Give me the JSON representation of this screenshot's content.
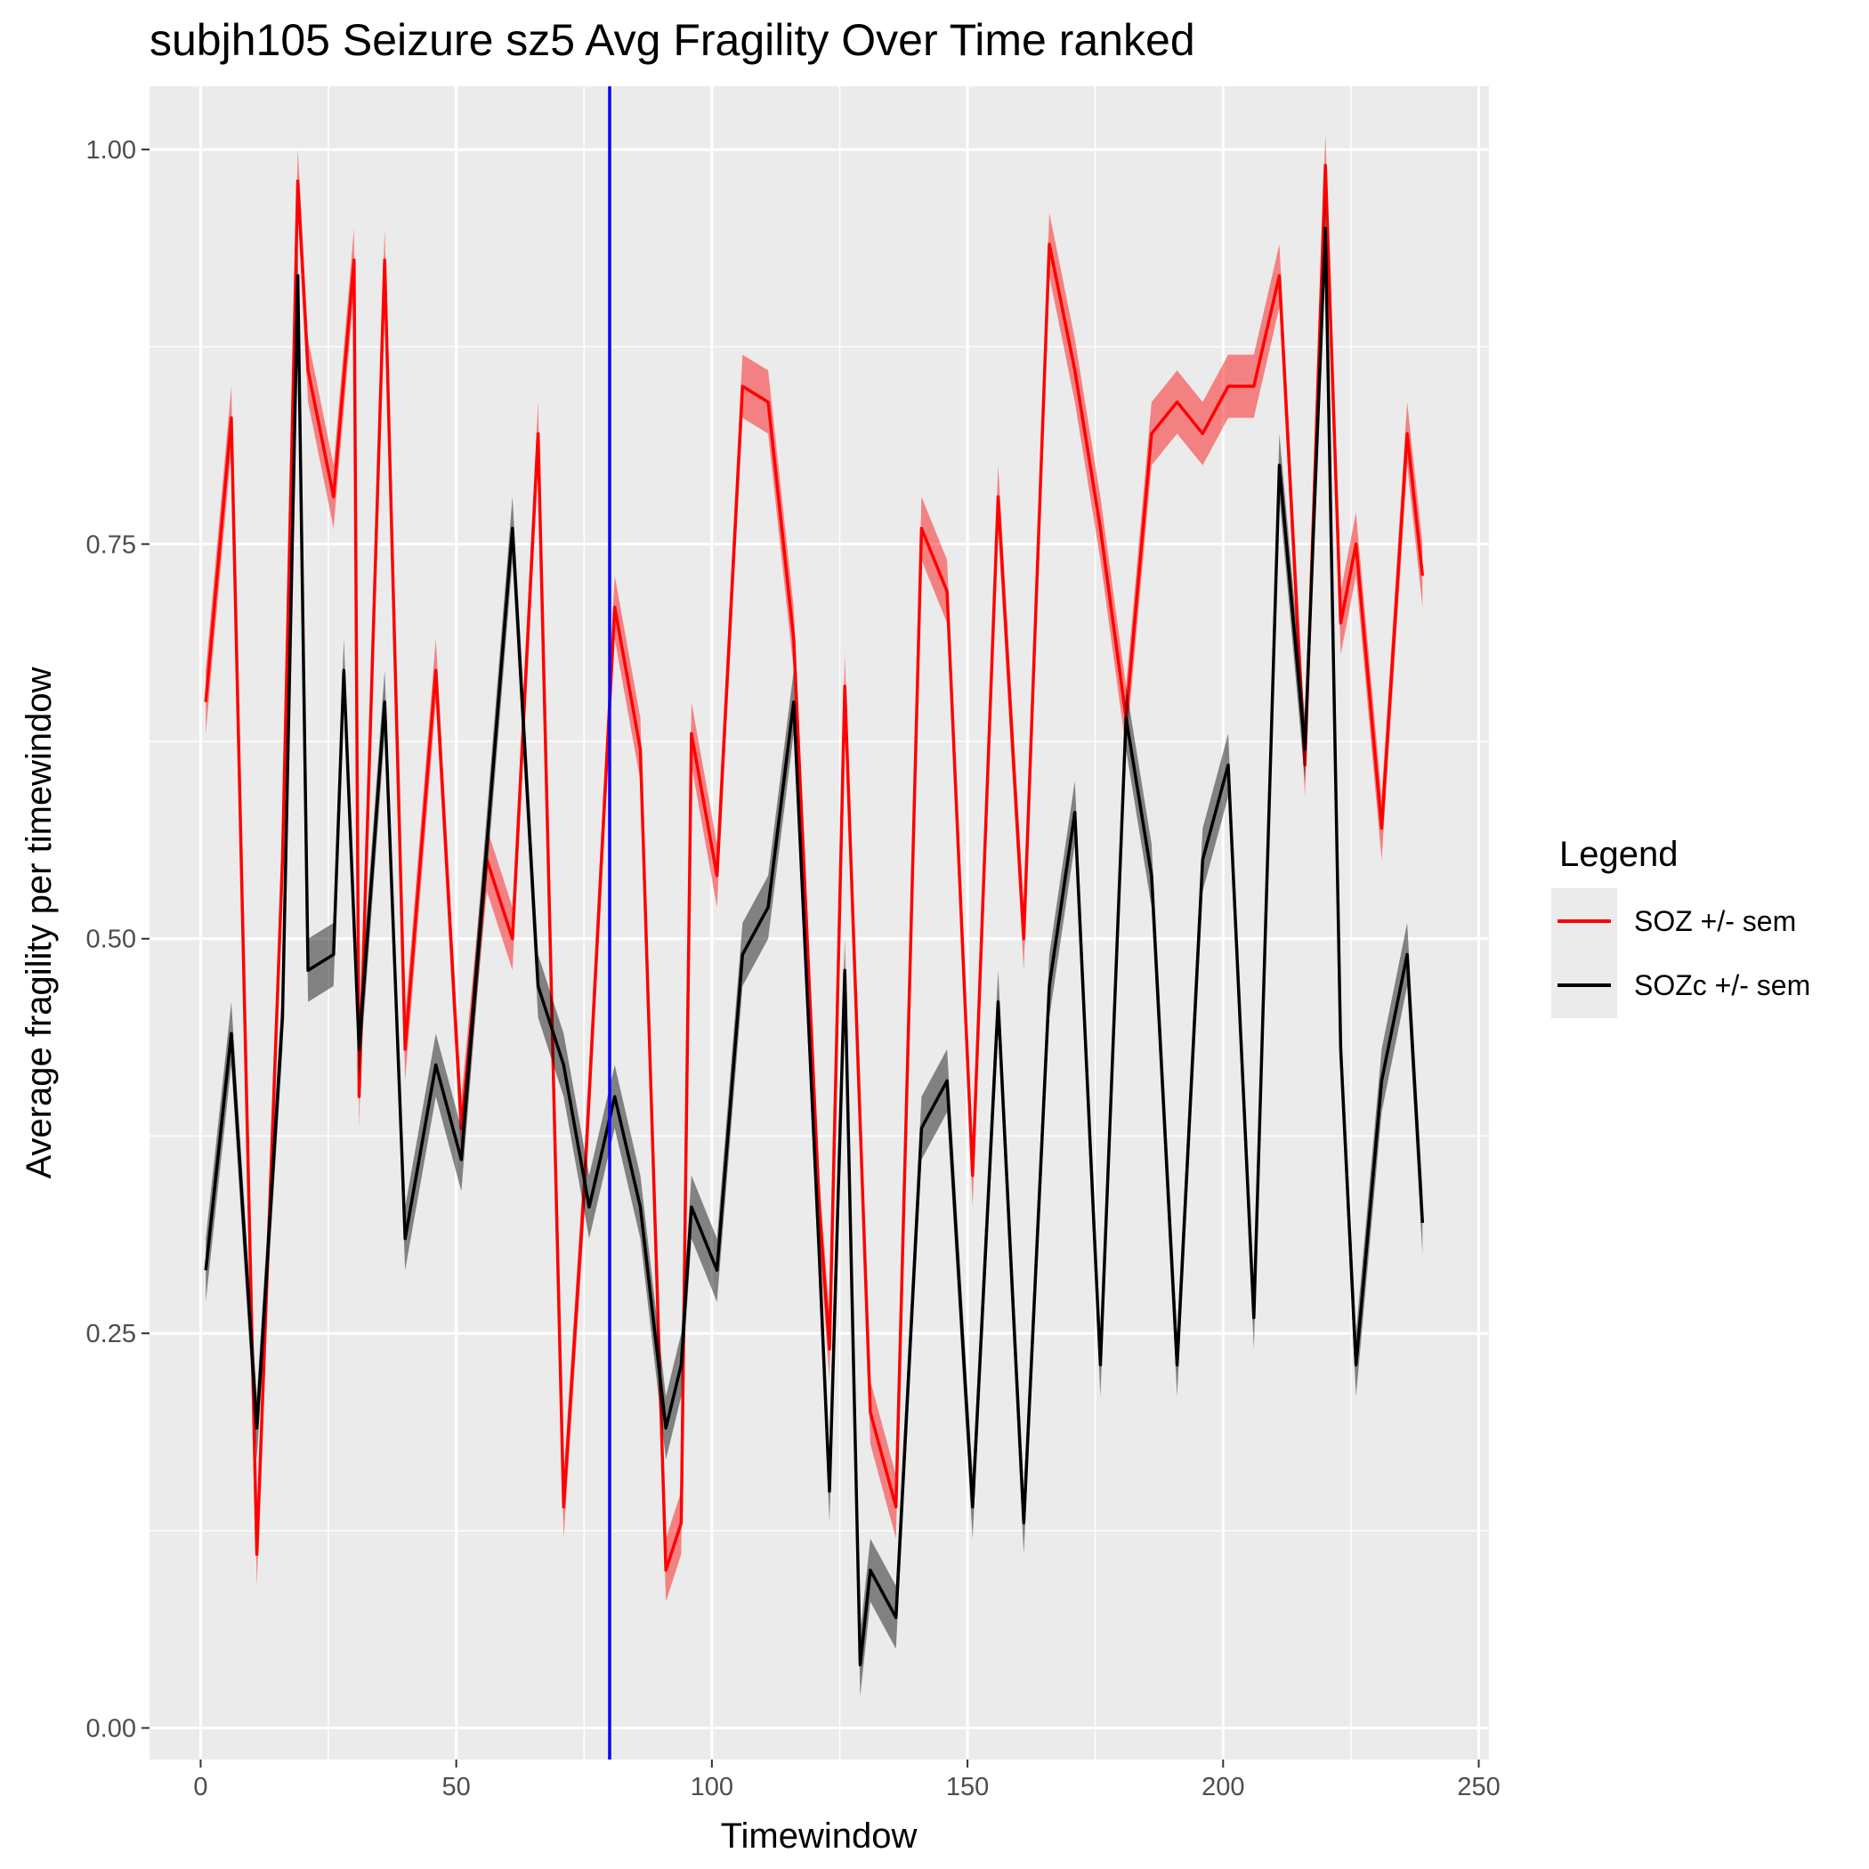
{
  "chart_data": {
    "type": "line",
    "title": "subjh105 Seizure sz5 Avg Fragility Over Time ranked",
    "xlabel": "Timewindow",
    "ylabel": "Average fragility per timewindow",
    "xlim": [
      -10,
      252
    ],
    "ylim": [
      -0.02,
      1.04
    ],
    "x_ticks": [
      0,
      50,
      100,
      150,
      200,
      250
    ],
    "x_tick_labels": [
      "0",
      "50",
      "100",
      "150",
      "200",
      "250"
    ],
    "y_ticks": [
      0.0,
      0.25,
      0.5,
      0.75,
      1.0
    ],
    "y_tick_labels": [
      "0.00",
      "0.25",
      "0.50",
      "0.75",
      "1.00"
    ],
    "grid": true,
    "legend": {
      "title": "Legend",
      "position": "right"
    },
    "vline": {
      "x": 80,
      "color": "#0000ff"
    },
    "series": [
      {
        "name": "SOZ +/- sem",
        "color": "#ff0000",
        "x": [
          1,
          6,
          11,
          16,
          19,
          21,
          26,
          30,
          31,
          36,
          40,
          46,
          51,
          56,
          61,
          66,
          71,
          75,
          81,
          86,
          91,
          94,
          96,
          101,
          106,
          111,
          116,
          121,
          123,
          126,
          131,
          136,
          141,
          146,
          151,
          156,
          161,
          166,
          171,
          176,
          181,
          186,
          191,
          196,
          201,
          206,
          211,
          216,
          220,
          223,
          226,
          231,
          236,
          239
        ],
        "y": [
          0.65,
          0.83,
          0.11,
          0.55,
          0.98,
          0.86,
          0.78,
          0.93,
          0.4,
          0.93,
          0.43,
          0.67,
          0.38,
          0.55,
          0.5,
          0.82,
          0.14,
          0.34,
          0.71,
          0.62,
          0.1,
          0.13,
          0.63,
          0.54,
          0.85,
          0.84,
          0.69,
          0.33,
          0.24,
          0.66,
          0.2,
          0.14,
          0.76,
          0.72,
          0.35,
          0.78,
          0.5,
          0.94,
          0.86,
          0.76,
          0.64,
          0.82,
          0.84,
          0.82,
          0.85,
          0.85,
          0.92,
          0.61,
          0.99,
          0.7,
          0.75,
          0.57,
          0.82,
          0.73
        ],
        "sem": 0.02
      },
      {
        "name": "SOZc +/- sem",
        "color": "#000000",
        "x": [
          1,
          6,
          11,
          16,
          19,
          21,
          26,
          28,
          31,
          36,
          40,
          46,
          51,
          56,
          61,
          66,
          71,
          76,
          81,
          86,
          91,
          94,
          96,
          101,
          106,
          111,
          116,
          121,
          123,
          126,
          129,
          131,
          136,
          141,
          146,
          151,
          156,
          161,
          166,
          171,
          176,
          181,
          186,
          191,
          196,
          201,
          206,
          211,
          216,
          220,
          223,
          226,
          231,
          236,
          239
        ],
        "y": [
          0.29,
          0.44,
          0.19,
          0.45,
          0.92,
          0.48,
          0.49,
          0.67,
          0.43,
          0.65,
          0.31,
          0.42,
          0.36,
          0.56,
          0.76,
          0.47,
          0.42,
          0.33,
          0.4,
          0.33,
          0.19,
          0.23,
          0.33,
          0.29,
          0.49,
          0.52,
          0.65,
          0.3,
          0.15,
          0.48,
          0.04,
          0.1,
          0.07,
          0.38,
          0.41,
          0.14,
          0.46,
          0.13,
          0.47,
          0.58,
          0.23,
          0.64,
          0.54,
          0.23,
          0.55,
          0.61,
          0.26,
          0.8,
          0.62,
          0.95,
          0.43,
          0.23,
          0.41,
          0.49,
          0.32
        ],
        "sem": 0.02
      }
    ]
  }
}
